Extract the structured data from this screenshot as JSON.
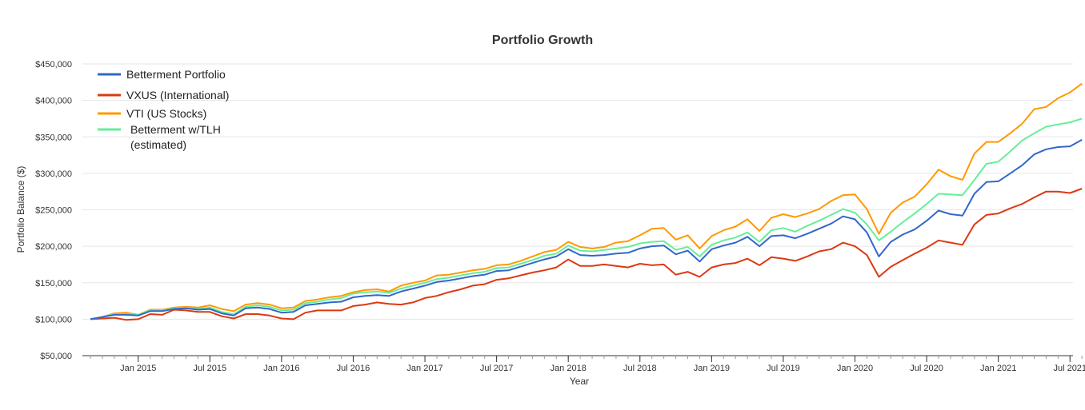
{
  "chart_data": {
    "type": "line",
    "title": "Portfolio Growth",
    "xlabel": "Year",
    "ylabel": "Portfolio Balance ($)",
    "ylim": [
      50000,
      450000
    ],
    "y_ticks": [
      50000,
      100000,
      150000,
      200000,
      250000,
      300000,
      350000,
      400000,
      450000
    ],
    "y_tick_labels": [
      "$50,000",
      "$100,000",
      "$150,000",
      "$200,000",
      "$250,000",
      "$300,000",
      "$350,000",
      "$400,000",
      "$450,000"
    ],
    "x_start": "Sep 2014",
    "x_ticks": [
      "Jan 2015",
      "Jul 2015",
      "Jan 2016",
      "Jul 2016",
      "Jan 2017",
      "Jul 2017",
      "Jan 2018",
      "Jul 2018",
      "Jan 2019",
      "Jul 2019",
      "Jan 2020",
      "Jul 2020",
      "Jan 2021",
      "Jul 2021"
    ],
    "grid": "horizontal",
    "legend_position": "top-left",
    "series": [
      {
        "name": "Betterment Portfolio",
        "color": "#3366cc",
        "values": [
          100000,
          103000,
          106000,
          106000,
          105000,
          111000,
          111000,
          114000,
          115000,
          113000,
          114000,
          108000,
          105000,
          115000,
          116000,
          114000,
          109000,
          110000,
          119000,
          121000,
          123000,
          124000,
          130000,
          132000,
          133000,
          132000,
          138000,
          142000,
          146000,
          151000,
          153000,
          156000,
          159000,
          161000,
          166000,
          167000,
          172000,
          177000,
          182000,
          186000,
          196000,
          188000,
          187000,
          188000,
          190000,
          191000,
          197000,
          200000,
          201000,
          189000,
          194000,
          179000,
          196000,
          201000,
          205000,
          213000,
          200000,
          214000,
          215000,
          211000,
          217000,
          224000,
          231000,
          241000,
          237000,
          219000,
          186000,
          206000,
          216000,
          223000,
          235000,
          249000,
          244000,
          242000,
          272000,
          288000,
          289000,
          300000,
          311000,
          326000,
          333000,
          336000,
          337000,
          346000
        ]
      },
      {
        "name": "VXUS (International)",
        "color": "#dc3912",
        "values": [
          100000,
          101000,
          102000,
          99000,
          100000,
          107000,
          106000,
          113000,
          112000,
          110000,
          110000,
          104000,
          101000,
          107000,
          107000,
          105000,
          101000,
          100000,
          109000,
          112000,
          112000,
          112000,
          118000,
          120000,
          123000,
          121000,
          120000,
          123000,
          129000,
          132000,
          137000,
          141000,
          146000,
          148000,
          154000,
          156000,
          160000,
          164000,
          167000,
          171000,
          182000,
          173000,
          173000,
          175000,
          173000,
          171000,
          176000,
          174000,
          175000,
          161000,
          165000,
          158000,
          171000,
          175000,
          177000,
          183000,
          174000,
          185000,
          183000,
          180000,
          186000,
          193000,
          196000,
          205000,
          200000,
          188000,
          158000,
          172000,
          181000,
          190000,
          198000,
          208000,
          205000,
          202000,
          230000,
          243000,
          245000,
          252000,
          258000,
          267000,
          275000,
          275000,
          273000,
          279000
        ]
      },
      {
        "name": "VTI (US Stocks)",
        "color": "#ff9900",
        "values": [
          100000,
          103000,
          108000,
          109000,
          106000,
          113000,
          113000,
          116000,
          117000,
          116000,
          119000,
          114000,
          111000,
          120000,
          122000,
          120000,
          115000,
          116000,
          125000,
          127000,
          130000,
          132000,
          137000,
          140000,
          141000,
          138000,
          146000,
          150000,
          153000,
          160000,
          161000,
          164000,
          167000,
          169000,
          174000,
          175000,
          180000,
          186000,
          192000,
          195000,
          206000,
          199000,
          197000,
          199000,
          205000,
          207000,
          215000,
          224000,
          225000,
          209000,
          215000,
          197000,
          214000,
          222000,
          227000,
          237000,
          221000,
          239000,
          244000,
          240000,
          245000,
          251000,
          262000,
          270000,
          271000,
          251000,
          217000,
          246000,
          260000,
          268000,
          285000,
          305000,
          296000,
          291000,
          327000,
          343000,
          343000,
          355000,
          368000,
          388000,
          391000,
          403000,
          411000,
          423000
        ]
      },
      {
        "name": "Betterment w/TLH (estimated)",
        "color": "#66ee99",
        "values": [
          100000,
          103000,
          107000,
          107000,
          106000,
          112000,
          112000,
          115000,
          116000,
          114000,
          116000,
          110000,
          107000,
          117000,
          119000,
          117000,
          112000,
          113000,
          122000,
          124000,
          127000,
          129000,
          135000,
          137000,
          138000,
          136000,
          142000,
          146000,
          150000,
          155000,
          157000,
          160000,
          163000,
          165000,
          170000,
          171000,
          176000,
          181000,
          187000,
          190000,
          201000,
          194000,
          193000,
          195000,
          197000,
          199000,
          204000,
          206000,
          207000,
          195000,
          199000,
          186000,
          202000,
          208000,
          212000,
          219000,
          206000,
          222000,
          225000,
          220000,
          228000,
          235000,
          243000,
          251000,
          246000,
          230000,
          208000,
          220000,
          233000,
          245000,
          258000,
          272000,
          271000,
          270000,
          291000,
          313000,
          316000,
          330000,
          345000,
          355000,
          364000,
          367000,
          370000,
          375000
        ]
      }
    ]
  }
}
